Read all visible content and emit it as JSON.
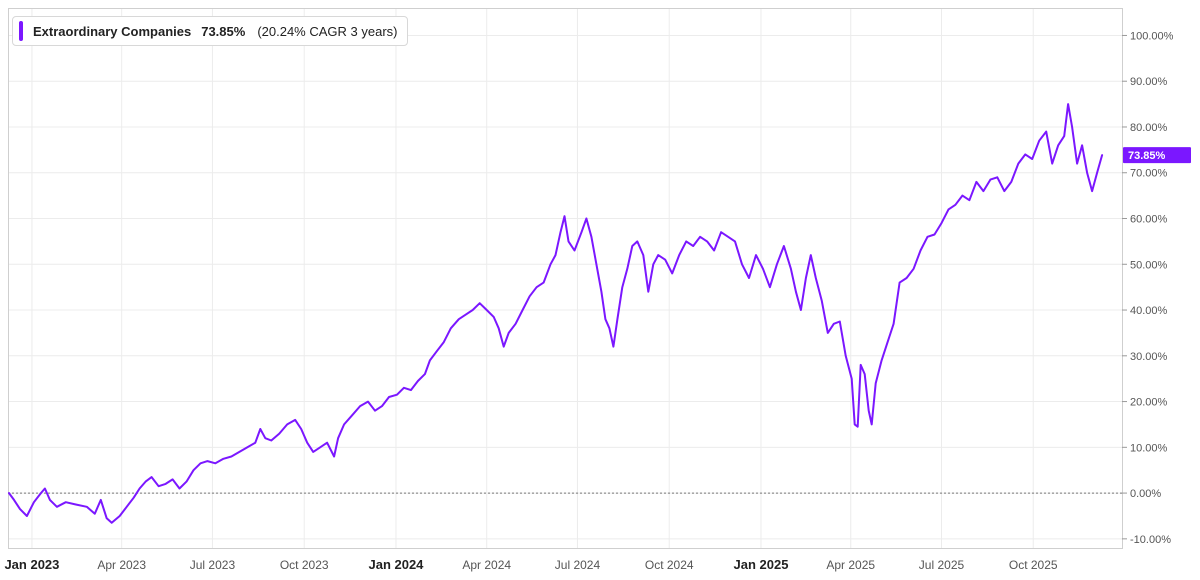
{
  "legend": {
    "series_name": "Extraordinary Companies",
    "value": "73.85%",
    "cagr": "(20.24% CAGR 3 years)"
  },
  "chart_data": {
    "type": "line",
    "title": "",
    "xlabel": "",
    "ylabel": "",
    "ylim": [
      -12,
      106
    ],
    "xlim": [
      "2022-12-08",
      "2025-12-29"
    ],
    "y_ticks": [
      "100.00%",
      "90.00%",
      "80.00%",
      "70.00%",
      "60.00%",
      "50.00%",
      "40.00%",
      "30.00%",
      "20.00%",
      "10.00%",
      "0.00%",
      "-10.00%"
    ],
    "y_tick_values": [
      100,
      90,
      80,
      70,
      60,
      50,
      40,
      30,
      20,
      10,
      0,
      -10
    ],
    "x_ticks": [
      {
        "label": "Jan 2023",
        "date": "2023-01-01",
        "major": true
      },
      {
        "label": "Apr 2023",
        "date": "2023-04-01",
        "major": false
      },
      {
        "label": "Jul 2023",
        "date": "2023-07-01",
        "major": false
      },
      {
        "label": "Oct 2023",
        "date": "2023-10-01",
        "major": false
      },
      {
        "label": "Jan 2024",
        "date": "2024-01-01",
        "major": true
      },
      {
        "label": "Apr 2024",
        "date": "2024-04-01",
        "major": false
      },
      {
        "label": "Jul 2024",
        "date": "2024-07-01",
        "major": false
      },
      {
        "label": "Oct 2024",
        "date": "2024-10-01",
        "major": false
      },
      {
        "label": "Jan 2025",
        "date": "2025-01-01",
        "major": true
      },
      {
        "label": "Apr 2025",
        "date": "2025-04-01",
        "major": false
      },
      {
        "label": "Jul 2025",
        "date": "2025-07-01",
        "major": false
      },
      {
        "label": "Oct 2025",
        "date": "2025-10-01",
        "major": false
      }
    ],
    "grid": true,
    "zero_line": "dotted",
    "last_value_label": "73.85%",
    "series": [
      {
        "name": "Extraordinary Companies",
        "color": "#7b17ff",
        "points": [
          [
            "2022-12-09",
            0.0
          ],
          [
            "2022-12-14",
            -1.5
          ],
          [
            "2022-12-20",
            -3.5
          ],
          [
            "2022-12-27",
            -5.0
          ],
          [
            "2023-01-03",
            -2.0
          ],
          [
            "2023-01-10",
            0.0
          ],
          [
            "2023-01-14",
            1.0
          ],
          [
            "2023-01-19",
            -1.5
          ],
          [
            "2023-01-26",
            -3.0
          ],
          [
            "2023-02-04",
            -2.0
          ],
          [
            "2023-02-14",
            -2.5
          ],
          [
            "2023-02-25",
            -3.0
          ],
          [
            "2023-03-05",
            -4.5
          ],
          [
            "2023-03-11",
            -1.5
          ],
          [
            "2023-03-17",
            -5.5
          ],
          [
            "2023-03-22",
            -6.5
          ],
          [
            "2023-03-30",
            -5.0
          ],
          [
            "2023-04-06",
            -3.0
          ],
          [
            "2023-04-13",
            -1.0
          ],
          [
            "2023-04-19",
            1.0
          ],
          [
            "2023-04-25",
            2.5
          ],
          [
            "2023-05-01",
            3.5
          ],
          [
            "2023-05-08",
            1.5
          ],
          [
            "2023-05-15",
            2.0
          ],
          [
            "2023-05-22",
            3.0
          ],
          [
            "2023-05-29",
            1.0
          ],
          [
            "2023-06-05",
            2.5
          ],
          [
            "2023-06-12",
            5.0
          ],
          [
            "2023-06-19",
            6.5
          ],
          [
            "2023-06-26",
            7.0
          ],
          [
            "2023-07-04",
            6.5
          ],
          [
            "2023-07-12",
            7.5
          ],
          [
            "2023-07-20",
            8.0
          ],
          [
            "2023-07-28",
            9.0
          ],
          [
            "2023-08-05",
            10.0
          ],
          [
            "2023-08-13",
            11.0
          ],
          [
            "2023-08-18",
            14.0
          ],
          [
            "2023-08-23",
            12.0
          ],
          [
            "2023-08-29",
            11.5
          ],
          [
            "2023-09-06",
            13.0
          ],
          [
            "2023-09-14",
            15.0
          ],
          [
            "2023-09-22",
            16.0
          ],
          [
            "2023-09-28",
            14.0
          ],
          [
            "2023-10-04",
            11.0
          ],
          [
            "2023-10-10",
            9.0
          ],
          [
            "2023-10-17",
            10.0
          ],
          [
            "2023-10-24",
            11.0
          ],
          [
            "2023-10-31",
            8.0
          ],
          [
            "2023-11-04",
            12.0
          ],
          [
            "2023-11-10",
            15.0
          ],
          [
            "2023-11-18",
            17.0
          ],
          [
            "2023-11-26",
            19.0
          ],
          [
            "2023-12-04",
            20.0
          ],
          [
            "2023-12-11",
            18.0
          ],
          [
            "2023-12-18",
            19.0
          ],
          [
            "2023-12-25",
            21.0
          ],
          [
            "2024-01-02",
            21.5
          ],
          [
            "2024-01-09",
            23.0
          ],
          [
            "2024-01-16",
            22.5
          ],
          [
            "2024-01-23",
            24.5
          ],
          [
            "2024-01-30",
            26.0
          ],
          [
            "2024-02-04",
            29.0
          ],
          [
            "2024-02-11",
            31.0
          ],
          [
            "2024-02-18",
            33.0
          ],
          [
            "2024-02-25",
            36.0
          ],
          [
            "2024-03-04",
            38.0
          ],
          [
            "2024-03-11",
            39.0
          ],
          [
            "2024-03-18",
            40.0
          ],
          [
            "2024-03-25",
            41.5
          ],
          [
            "2024-04-01",
            40.0
          ],
          [
            "2024-04-08",
            38.5
          ],
          [
            "2024-04-13",
            36.0
          ],
          [
            "2024-04-18",
            32.0
          ],
          [
            "2024-04-23",
            35.0
          ],
          [
            "2024-04-30",
            37.0
          ],
          [
            "2024-05-07",
            40.0
          ],
          [
            "2024-05-14",
            43.0
          ],
          [
            "2024-05-21",
            45.0
          ],
          [
            "2024-05-28",
            46.0
          ],
          [
            "2024-06-04",
            50.0
          ],
          [
            "2024-06-09",
            52.0
          ],
          [
            "2024-06-14",
            57.0
          ],
          [
            "2024-06-18",
            60.5
          ],
          [
            "2024-06-22",
            55.0
          ],
          [
            "2024-06-28",
            53.0
          ],
          [
            "2024-07-05",
            57.0
          ],
          [
            "2024-07-10",
            60.0
          ],
          [
            "2024-07-15",
            56.0
          ],
          [
            "2024-07-20",
            50.0
          ],
          [
            "2024-07-25",
            44.0
          ],
          [
            "2024-07-29",
            38.0
          ],
          [
            "2024-08-02",
            36.0
          ],
          [
            "2024-08-06",
            32.0
          ],
          [
            "2024-08-10",
            38.0
          ],
          [
            "2024-08-15",
            45.0
          ],
          [
            "2024-08-20",
            49.0
          ],
          [
            "2024-08-25",
            54.0
          ],
          [
            "2024-08-30",
            55.0
          ],
          [
            "2024-09-05",
            52.0
          ],
          [
            "2024-09-10",
            44.0
          ],
          [
            "2024-09-15",
            50.0
          ],
          [
            "2024-09-20",
            52.0
          ],
          [
            "2024-09-27",
            51.0
          ],
          [
            "2024-10-04",
            48.0
          ],
          [
            "2024-10-11",
            52.0
          ],
          [
            "2024-10-18",
            55.0
          ],
          [
            "2024-10-25",
            54.0
          ],
          [
            "2024-11-01",
            56.0
          ],
          [
            "2024-11-08",
            55.0
          ],
          [
            "2024-11-15",
            53.0
          ],
          [
            "2024-11-22",
            57.0
          ],
          [
            "2024-11-29",
            56.0
          ],
          [
            "2024-12-06",
            55.0
          ],
          [
            "2024-12-13",
            50.0
          ],
          [
            "2024-12-20",
            47.0
          ],
          [
            "2024-12-27",
            52.0
          ],
          [
            "2025-01-03",
            49.0
          ],
          [
            "2025-01-10",
            45.0
          ],
          [
            "2025-01-17",
            50.0
          ],
          [
            "2025-01-24",
            54.0
          ],
          [
            "2025-01-31",
            49.0
          ],
          [
            "2025-02-05",
            44.0
          ],
          [
            "2025-02-10",
            40.0
          ],
          [
            "2025-02-15",
            47.0
          ],
          [
            "2025-02-20",
            52.0
          ],
          [
            "2025-02-25",
            47.0
          ],
          [
            "2025-03-03",
            42.0
          ],
          [
            "2025-03-09",
            35.0
          ],
          [
            "2025-03-15",
            37.0
          ],
          [
            "2025-03-21",
            37.5
          ],
          [
            "2025-03-27",
            30.0
          ],
          [
            "2025-04-02",
            25.0
          ],
          [
            "2025-04-05",
            15.0
          ],
          [
            "2025-04-08",
            14.5
          ],
          [
            "2025-04-11",
            28.0
          ],
          [
            "2025-04-15",
            26.0
          ],
          [
            "2025-04-19",
            18.0
          ],
          [
            "2025-04-22",
            15.0
          ],
          [
            "2025-04-26",
            24.0
          ],
          [
            "2025-05-02",
            29.0
          ],
          [
            "2025-05-08",
            33.0
          ],
          [
            "2025-05-14",
            37.0
          ],
          [
            "2025-05-20",
            46.0
          ],
          [
            "2025-05-27",
            47.0
          ],
          [
            "2025-06-03",
            49.0
          ],
          [
            "2025-06-10",
            53.0
          ],
          [
            "2025-06-17",
            56.0
          ],
          [
            "2025-06-24",
            56.5
          ],
          [
            "2025-07-01",
            59.0
          ],
          [
            "2025-07-08",
            62.0
          ],
          [
            "2025-07-15",
            63.0
          ],
          [
            "2025-07-22",
            65.0
          ],
          [
            "2025-07-29",
            64.0
          ],
          [
            "2025-08-05",
            68.0
          ],
          [
            "2025-08-12",
            66.0
          ],
          [
            "2025-08-19",
            68.5
          ],
          [
            "2025-08-26",
            69.0
          ],
          [
            "2025-09-02",
            66.0
          ],
          [
            "2025-09-09",
            68.0
          ],
          [
            "2025-09-16",
            72.0
          ],
          [
            "2025-09-23",
            74.0
          ],
          [
            "2025-09-30",
            73.0
          ],
          [
            "2025-10-07",
            77.0
          ],
          [
            "2025-10-14",
            79.0
          ],
          [
            "2025-10-20",
            72.0
          ],
          [
            "2025-10-26",
            76.0
          ],
          [
            "2025-11-01",
            78.0
          ],
          [
            "2025-11-05",
            85.0
          ],
          [
            "2025-11-09",
            80.0
          ],
          [
            "2025-11-14",
            72.0
          ],
          [
            "2025-11-19",
            76.0
          ],
          [
            "2025-11-24",
            70.0
          ],
          [
            "2025-11-29",
            66.0
          ],
          [
            "2025-12-04",
            70.0
          ],
          [
            "2025-12-09",
            73.85
          ]
        ]
      }
    ]
  }
}
